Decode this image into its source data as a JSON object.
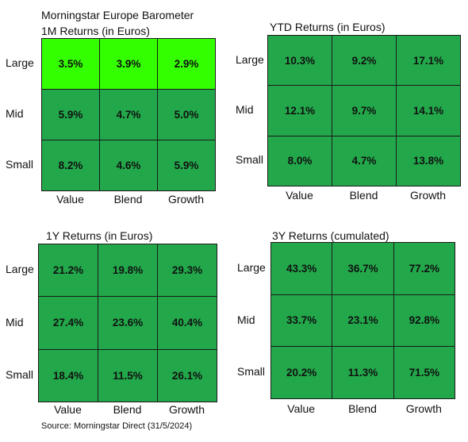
{
  "header": {
    "title": "Morningstar Europe Barometer"
  },
  "source": "Source: Morningstar Direct (31/5/2024)",
  "colors": {
    "bright_green": "#33ff00",
    "green": "#22a84a",
    "border": "#1a1a1a"
  },
  "chart_data": [
    {
      "type": "heatmap",
      "title": "1M Returns (in Euros)",
      "columns": [
        "Value",
        "Blend",
        "Growth"
      ],
      "rows": [
        "Large",
        "Mid",
        "Small"
      ],
      "values": [
        [
          "3.5%",
          "3.9%",
          "2.9%"
        ],
        [
          "5.9%",
          "4.7%",
          "5.0%"
        ],
        [
          "8.2%",
          "4.6%",
          "5.9%"
        ]
      ],
      "cell_colors": [
        [
          "#33ff00",
          "#33ff00",
          "#33ff00"
        ],
        [
          "#22a84a",
          "#22a84a",
          "#22a84a"
        ],
        [
          "#22a84a",
          "#22a84a",
          "#22a84a"
        ]
      ]
    },
    {
      "type": "heatmap",
      "title": "YTD Returns (in Euros)",
      "columns": [
        "Value",
        "Blend",
        "Growth"
      ],
      "rows": [
        "Large",
        "Mid",
        "Small"
      ],
      "values": [
        [
          "10.3%",
          "9.2%",
          "17.1%"
        ],
        [
          "12.1%",
          "9.7%",
          "14.1%"
        ],
        [
          "8.0%",
          "4.7%",
          "13.8%"
        ]
      ],
      "cell_colors": [
        [
          "#22a84a",
          "#22a84a",
          "#22a84a"
        ],
        [
          "#22a84a",
          "#22a84a",
          "#22a84a"
        ],
        [
          "#22a84a",
          "#22a84a",
          "#22a84a"
        ]
      ]
    },
    {
      "type": "heatmap",
      "title": "1Y Returns (in Euros)",
      "columns": [
        "Value",
        "Blend",
        "Growth"
      ],
      "rows": [
        "Large",
        "Mid",
        "Small"
      ],
      "values": [
        [
          "21.2%",
          "19.8%",
          "29.3%"
        ],
        [
          "27.4%",
          "23.6%",
          "40.4%"
        ],
        [
          "18.4%",
          "11.5%",
          "26.1%"
        ]
      ],
      "cell_colors": [
        [
          "#22a84a",
          "#22a84a",
          "#22a84a"
        ],
        [
          "#22a84a",
          "#22a84a",
          "#22a84a"
        ],
        [
          "#22a84a",
          "#22a84a",
          "#22a84a"
        ]
      ]
    },
    {
      "type": "heatmap",
      "title": "3Y Returns (cumulated)",
      "columns": [
        "Value",
        "Blend",
        "Growth"
      ],
      "rows": [
        "Large",
        "Mid",
        "Small"
      ],
      "values": [
        [
          "43.3%",
          "36.7%",
          "77.2%"
        ],
        [
          "33.7%",
          "23.1%",
          "92.8%"
        ],
        [
          "20.2%",
          "11.3%",
          "71.5%"
        ]
      ],
      "cell_colors": [
        [
          "#22a84a",
          "#22a84a",
          "#22a84a"
        ],
        [
          "#22a84a",
          "#22a84a",
          "#22a84a"
        ],
        [
          "#22a84a",
          "#22a84a",
          "#22a84a"
        ]
      ]
    }
  ]
}
